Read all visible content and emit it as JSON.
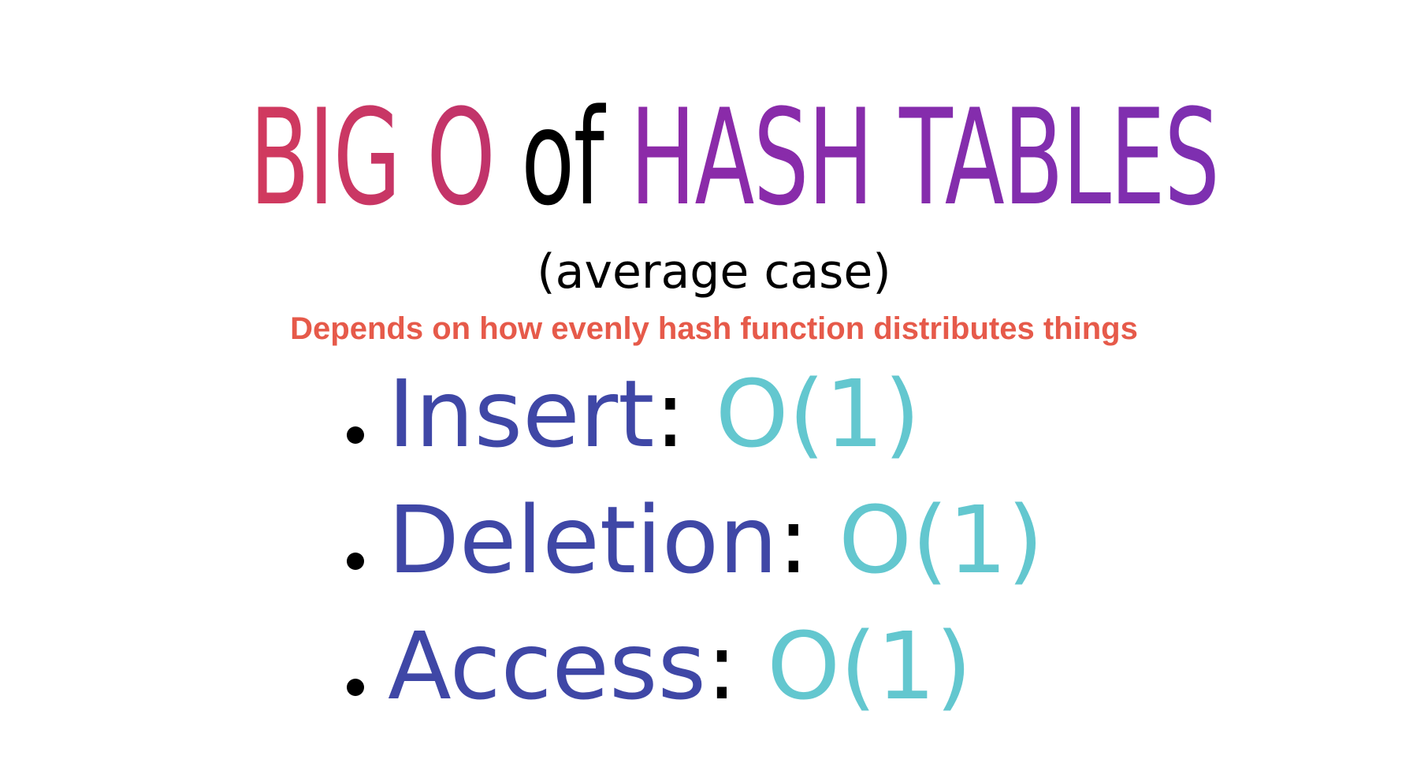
{
  "title": {
    "part1": "BIG O",
    "part2": "of",
    "part3": "HASH TABLES"
  },
  "subtitle": "(average case)",
  "note": "Depends on how evenly hash function distributes things",
  "operations": [
    {
      "name": "Insert",
      "complexity": "O(1)"
    },
    {
      "name": "Deletion",
      "complexity": "O(1)"
    },
    {
      "name": "Access",
      "complexity": "O(1)"
    }
  ],
  "colors": {
    "title_part1": "#c8365f",
    "title_part2": "#000000",
    "title_part3": "#8a2cab",
    "note": "#e65a4a",
    "operation": "#3f47a6",
    "complexity": "#63c7cf"
  }
}
